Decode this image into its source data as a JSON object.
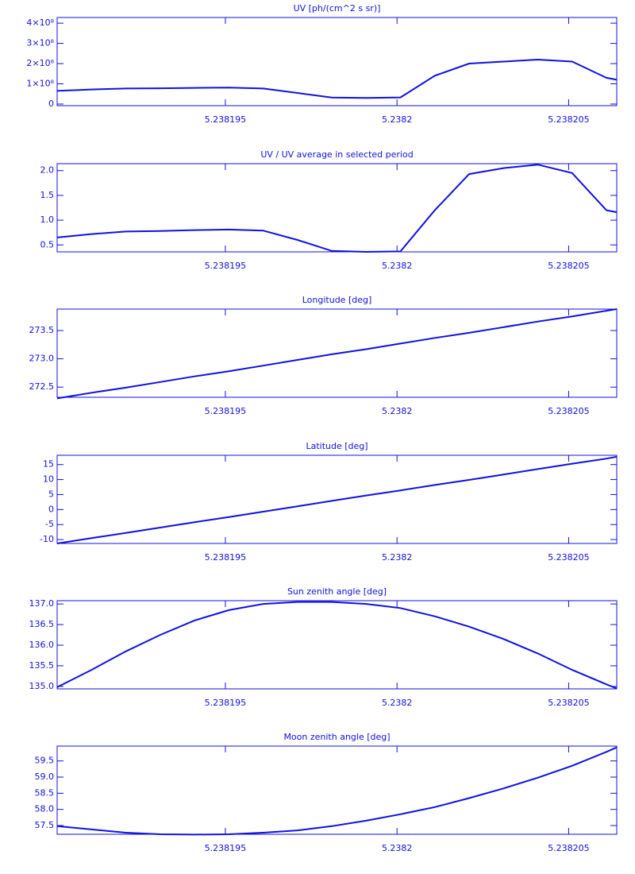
{
  "chart_data": [
    {
      "type": "line",
      "title": "UV [ph/(cm^2 s sr)]",
      "color": "#1010e0",
      "x": [
        5.2381901,
        5.2381911,
        5.2381921,
        5.2381931,
        5.2381941,
        5.2381951,
        5.2381961,
        5.2381971,
        5.2381981,
        5.2381991,
        5.2382001,
        5.2382011,
        5.2382021,
        5.2382031,
        5.2382041,
        5.2382051,
        5.2382061,
        5.2382064
      ],
      "values": [
        65000000,
        72000000,
        77000000,
        78000000,
        80000000,
        81000000,
        77000000,
        55000000,
        32000000,
        30000000,
        33000000,
        140000000,
        200000000,
        210000000,
        220000000,
        210000000,
        130000000,
        120000000
      ],
      "xlim": [
        5.2381901,
        5.2382064
      ],
      "xticks": [
        5.238195,
        5.2382,
        5.238205
      ],
      "ylim": [
        -8000000,
        428000000
      ],
      "yticks": [
        0,
        {
          "value": 100000000,
          "label": "1×10⁸"
        },
        {
          "value": 200000000,
          "label": "2×10⁸"
        },
        {
          "value": 300000000,
          "label": "3×10⁸"
        },
        {
          "value": 400000000,
          "label": "4×10⁸"
        }
      ]
    },
    {
      "type": "line",
      "title": "UV / UV average in selected period",
      "color": "#1010e0",
      "x": [
        5.2381901,
        5.2381911,
        5.2381921,
        5.2381931,
        5.2381941,
        5.2381951,
        5.2381961,
        5.2381971,
        5.2381981,
        5.2381991,
        5.2382001,
        5.2382011,
        5.2382021,
        5.2382031,
        5.2382041,
        5.2382051,
        5.2382061,
        5.2382064
      ],
      "values": [
        0.65,
        0.72,
        0.77,
        0.78,
        0.8,
        0.81,
        0.79,
        0.6,
        0.38,
        0.36,
        0.37,
        1.2,
        1.93,
        2.05,
        2.12,
        1.95,
        1.2,
        1.16
      ],
      "xlim": [
        5.2381901,
        5.2382064
      ],
      "xticks": [
        5.238195,
        5.2382,
        5.238205
      ],
      "ylim": [
        0.36,
        2.14
      ],
      "yticks": [
        {
          "value": 0.5,
          "label": "0.5"
        },
        {
          "value": 1,
          "label": "1.0"
        },
        {
          "value": 1.5,
          "label": "1.5"
        },
        {
          "value": 2,
          "label": "2.0"
        }
      ]
    },
    {
      "type": "line",
      "title": "Longitude [deg]",
      "color": "#1010e0",
      "x": [
        5.2381901,
        5.2381911,
        5.2381921,
        5.2381931,
        5.2381941,
        5.2381951,
        5.2381961,
        5.2381971,
        5.2381981,
        5.2381991,
        5.2382001,
        5.2382011,
        5.2382021,
        5.2382031,
        5.2382041,
        5.2382051,
        5.2382061,
        5.2382064
      ],
      "values": [
        272.3,
        272.4,
        272.49,
        272.59,
        272.69,
        272.78,
        272.88,
        272.98,
        273.08,
        273.17,
        273.27,
        273.37,
        273.46,
        273.56,
        273.66,
        273.75,
        273.85,
        273.88
      ],
      "xlim": [
        5.2381901,
        5.2382064
      ],
      "xticks": [
        5.238195,
        5.2382,
        5.238205
      ],
      "ylim": [
        272.32,
        273.88
      ],
      "yticks": [
        272.5,
        {
          "value": 273,
          "label": "273.0"
        },
        273.5
      ]
    },
    {
      "type": "line",
      "title": "Latitude [deg]",
      "color": "#1010e0",
      "x": [
        5.2381901,
        5.2381911,
        5.2381921,
        5.2381931,
        5.2381941,
        5.2381951,
        5.2381961,
        5.2381971,
        5.2381981,
        5.2381991,
        5.2382001,
        5.2382011,
        5.2382021,
        5.2382031,
        5.2382041,
        5.2382051,
        5.2382061,
        5.2382064
      ],
      "values": [
        -11.3,
        -9.5,
        -7.8,
        -6.0,
        -4.2,
        -2.5,
        -0.7,
        1.1,
        2.9,
        4.7,
        6.4,
        8.2,
        9.9,
        11.7,
        13.5,
        15.3,
        17.0,
        17.6
      ],
      "xlim": [
        5.2381901,
        5.2382064
      ],
      "xticks": [
        5.238195,
        5.2382,
        5.238205
      ],
      "ylim": [
        -11.3,
        18.1
      ],
      "yticks": [
        -10,
        -5,
        0,
        5,
        10,
        15
      ]
    },
    {
      "type": "line",
      "title": "Sun zenith angle [deg]",
      "color": "#1010e0",
      "x": [
        5.2381901,
        5.2381911,
        5.2381921,
        5.2381931,
        5.2381941,
        5.2381951,
        5.2381961,
        5.2381971,
        5.2381981,
        5.2381991,
        5.2382001,
        5.2382011,
        5.2382021,
        5.2382031,
        5.2382041,
        5.2382051,
        5.2382061,
        5.2382064
      ],
      "values": [
        134.98,
        135.4,
        135.85,
        136.25,
        136.6,
        136.85,
        137.0,
        137.05,
        137.05,
        137.0,
        136.9,
        136.7,
        136.45,
        136.15,
        135.8,
        135.4,
        135.05,
        134.95
      ],
      "xlim": [
        5.2381901,
        5.2382064
      ],
      "xticks": [
        5.238195,
        5.2382,
        5.238205
      ],
      "ylim": [
        134.94,
        137.08
      ],
      "yticks": [
        {
          "value": 135,
          "label": "135.0"
        },
        135.5,
        {
          "value": 136,
          "label": "136.0"
        },
        136.5,
        {
          "value": 137,
          "label": "137.0"
        }
      ]
    },
    {
      "type": "line",
      "title": "Moon zenith angle [deg]",
      "color": "#1010e0",
      "x": [
        5.2381901,
        5.2381911,
        5.2381921,
        5.2381931,
        5.2381941,
        5.2381951,
        5.2381961,
        5.2381971,
        5.2381981,
        5.2381991,
        5.2382001,
        5.2382011,
        5.2382021,
        5.2382031,
        5.2382041,
        5.2382051,
        5.2382061,
        5.2382064
      ],
      "values": [
        57.48,
        57.38,
        57.28,
        57.23,
        57.22,
        57.23,
        57.28,
        57.35,
        57.48,
        57.65,
        57.85,
        58.07,
        58.35,
        58.65,
        58.98,
        59.35,
        59.78,
        59.92
      ],
      "xlim": [
        5.2381901,
        5.2382064
      ],
      "xticks": [
        5.238195,
        5.2382,
        5.238205
      ],
      "ylim": [
        57.23,
        59.96
      ],
      "yticks": [
        57.5,
        {
          "value": 58,
          "label": "58.0"
        },
        58.5,
        {
          "value": 59,
          "label": "59.0"
        },
        59.5
      ]
    }
  ]
}
